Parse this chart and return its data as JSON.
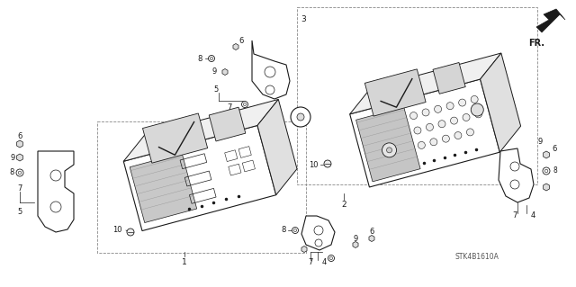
{
  "bg_color": "#ffffff",
  "part_code": "STK4B1610A",
  "fr_label": "FR.",
  "dark": "#1a1a1a",
  "gray": "#888888",
  "light_gray": "#cccccc",
  "figsize": [
    6.4,
    3.19
  ],
  "dpi": 100
}
